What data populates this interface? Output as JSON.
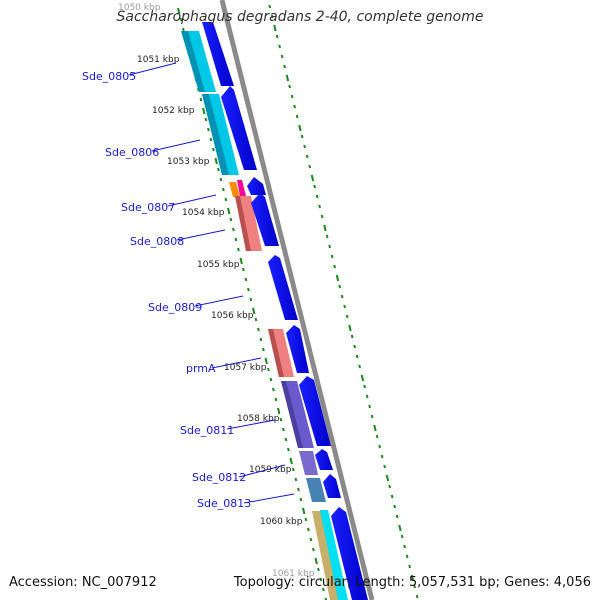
{
  "title": "Saccharophagus degradans 2-40, complete genome",
  "accession": "Accession: NC_007912",
  "summary": "Topology: circular; Length: 5,057,531 bp; Genes: 4,056",
  "kbp_labels": [
    "1050 kbp",
    "1051 kbp",
    "1052 kbp",
    "1053 kbp",
    "1054 kbp",
    "1055 kbp",
    "1056 kbp",
    "1057 kbp",
    "1058 kbp",
    "1059 kbp",
    "1060 kbp",
    "1061 kbp"
  ],
  "gene_labels": [
    "Sde_0805",
    "Sde_0806",
    "Sde_0807",
    "Sde_0808",
    "Sde_0809",
    "prmA",
    "Sde_0811",
    "Sde_0812",
    "Sde_0813"
  ],
  "colors": {
    "cds_arrow": "#0a00e6",
    "label": "#1a1ad0",
    "backbone": "#888888",
    "tick": "#1a8a1a",
    "cyan": "#00cfe8",
    "salmon": "#f08080",
    "violet": "#6a5acd",
    "steelblue": "#4682b4",
    "orange": "#ff8c00",
    "magenta": "#ff00a0",
    "khaki": "#c8b06a"
  }
}
